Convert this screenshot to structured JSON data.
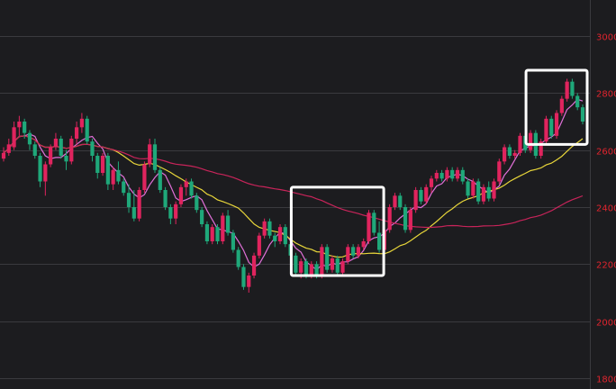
{
  "chart_data": {
    "type": "candlestick",
    "title": "",
    "xlabel": "",
    "ylabel": "",
    "ylim": [
      1800,
      3100
    ],
    "yticks": [
      "1800",
      "2000",
      "2200",
      "2400",
      "2600",
      "2800",
      "3000"
    ],
    "grid": true,
    "colors": {
      "background": "#1c1c1f",
      "grid": "#3a3a3e",
      "up": "#e0245e",
      "down": "#1fa87a",
      "ticks": "#e0242e",
      "highlight": "#ffffff"
    },
    "candles": [
      {
        "o": 2570,
        "h": 2610,
        "l": 2560,
        "c": 2590
      },
      {
        "o": 2590,
        "h": 2640,
        "l": 2580,
        "c": 2620
      },
      {
        "o": 2610,
        "h": 2700,
        "l": 2600,
        "c": 2680
      },
      {
        "o": 2680,
        "h": 2720,
        "l": 2650,
        "c": 2700
      },
      {
        "o": 2700,
        "h": 2710,
        "l": 2640,
        "c": 2660
      },
      {
        "o": 2660,
        "h": 2670,
        "l": 2600,
        "c": 2620
      },
      {
        "o": 2620,
        "h": 2630,
        "l": 2570,
        "c": 2580
      },
      {
        "o": 2580,
        "h": 2590,
        "l": 2470,
        "c": 2490
      },
      {
        "o": 2490,
        "h": 2560,
        "l": 2440,
        "c": 2550
      },
      {
        "o": 2550,
        "h": 2620,
        "l": 2540,
        "c": 2610
      },
      {
        "o": 2610,
        "h": 2660,
        "l": 2600,
        "c": 2640
      },
      {
        "o": 2640,
        "h": 2650,
        "l": 2570,
        "c": 2580
      },
      {
        "o": 2580,
        "h": 2600,
        "l": 2530,
        "c": 2560
      },
      {
        "o": 2560,
        "h": 2650,
        "l": 2550,
        "c": 2640
      },
      {
        "o": 2640,
        "h": 2700,
        "l": 2620,
        "c": 2680
      },
      {
        "o": 2680,
        "h": 2730,
        "l": 2660,
        "c": 2710
      },
      {
        "o": 2710,
        "h": 2720,
        "l": 2620,
        "c": 2630
      },
      {
        "o": 2630,
        "h": 2640,
        "l": 2560,
        "c": 2580
      },
      {
        "o": 2580,
        "h": 2590,
        "l": 2500,
        "c": 2520
      },
      {
        "o": 2520,
        "h": 2590,
        "l": 2510,
        "c": 2580
      },
      {
        "o": 2580,
        "h": 2590,
        "l": 2460,
        "c": 2480
      },
      {
        "o": 2480,
        "h": 2540,
        "l": 2460,
        "c": 2530
      },
      {
        "o": 2530,
        "h": 2560,
        "l": 2480,
        "c": 2490
      },
      {
        "o": 2490,
        "h": 2500,
        "l": 2440,
        "c": 2450
      },
      {
        "o": 2450,
        "h": 2480,
        "l": 2380,
        "c": 2400
      },
      {
        "o": 2400,
        "h": 2460,
        "l": 2350,
        "c": 2360
      },
      {
        "o": 2360,
        "h": 2470,
        "l": 2350,
        "c": 2460
      },
      {
        "o": 2460,
        "h": 2560,
        "l": 2450,
        "c": 2550
      },
      {
        "o": 2550,
        "h": 2640,
        "l": 2540,
        "c": 2620
      },
      {
        "o": 2620,
        "h": 2640,
        "l": 2520,
        "c": 2530
      },
      {
        "o": 2530,
        "h": 2540,
        "l": 2450,
        "c": 2460
      },
      {
        "o": 2460,
        "h": 2470,
        "l": 2390,
        "c": 2400
      },
      {
        "o": 2400,
        "h": 2410,
        "l": 2340,
        "c": 2360
      },
      {
        "o": 2360,
        "h": 2420,
        "l": 2340,
        "c": 2410
      },
      {
        "o": 2410,
        "h": 2480,
        "l": 2400,
        "c": 2470
      },
      {
        "o": 2470,
        "h": 2500,
        "l": 2440,
        "c": 2490
      },
      {
        "o": 2490,
        "h": 2500,
        "l": 2430,
        "c": 2440
      },
      {
        "o": 2440,
        "h": 2450,
        "l": 2380,
        "c": 2390
      },
      {
        "o": 2390,
        "h": 2400,
        "l": 2330,
        "c": 2340
      },
      {
        "o": 2340,
        "h": 2350,
        "l": 2270,
        "c": 2280
      },
      {
        "o": 2280,
        "h": 2340,
        "l": 2270,
        "c": 2330
      },
      {
        "o": 2330,
        "h": 2340,
        "l": 2270,
        "c": 2280
      },
      {
        "o": 2280,
        "h": 2380,
        "l": 2270,
        "c": 2370
      },
      {
        "o": 2370,
        "h": 2390,
        "l": 2300,
        "c": 2310
      },
      {
        "o": 2310,
        "h": 2320,
        "l": 2240,
        "c": 2250
      },
      {
        "o": 2250,
        "h": 2260,
        "l": 2180,
        "c": 2190
      },
      {
        "o": 2190,
        "h": 2200,
        "l": 2110,
        "c": 2120
      },
      {
        "o": 2120,
        "h": 2170,
        "l": 2100,
        "c": 2160
      },
      {
        "o": 2160,
        "h": 2240,
        "l": 2150,
        "c": 2230
      },
      {
        "o": 2230,
        "h": 2310,
        "l": 2220,
        "c": 2300
      },
      {
        "o": 2300,
        "h": 2360,
        "l": 2290,
        "c": 2350
      },
      {
        "o": 2350,
        "h": 2360,
        "l": 2290,
        "c": 2300
      },
      {
        "o": 2300,
        "h": 2310,
        "l": 2260,
        "c": 2280
      },
      {
        "o": 2280,
        "h": 2340,
        "l": 2270,
        "c": 2330
      },
      {
        "o": 2330,
        "h": 2340,
        "l": 2260,
        "c": 2270
      },
      {
        "o": 2270,
        "h": 2290,
        "l": 2220,
        "c": 2230
      },
      {
        "o": 2230,
        "h": 2240,
        "l": 2160,
        "c": 2170
      },
      {
        "o": 2170,
        "h": 2220,
        "l": 2150,
        "c": 2210
      },
      {
        "o": 2210,
        "h": 2220,
        "l": 2150,
        "c": 2160
      },
      {
        "o": 2160,
        "h": 2210,
        "l": 2150,
        "c": 2200
      },
      {
        "o": 2200,
        "h": 2210,
        "l": 2150,
        "c": 2160
      },
      {
        "o": 2160,
        "h": 2270,
        "l": 2150,
        "c": 2260
      },
      {
        "o": 2260,
        "h": 2270,
        "l": 2170,
        "c": 2180
      },
      {
        "o": 2180,
        "h": 2230,
        "l": 2170,
        "c": 2220
      },
      {
        "o": 2220,
        "h": 2230,
        "l": 2160,
        "c": 2170
      },
      {
        "o": 2170,
        "h": 2220,
        "l": 2160,
        "c": 2210
      },
      {
        "o": 2210,
        "h": 2270,
        "l": 2200,
        "c": 2260
      },
      {
        "o": 2260,
        "h": 2270,
        "l": 2220,
        "c": 2230
      },
      {
        "o": 2230,
        "h": 2270,
        "l": 2220,
        "c": 2260
      },
      {
        "o": 2260,
        "h": 2290,
        "l": 2250,
        "c": 2280
      },
      {
        "o": 2280,
        "h": 2390,
        "l": 2270,
        "c": 2380
      },
      {
        "o": 2380,
        "h": 2390,
        "l": 2300,
        "c": 2310
      },
      {
        "o": 2310,
        "h": 2350,
        "l": 2240,
        "c": 2250
      },
      {
        "o": 2250,
        "h": 2330,
        "l": 2240,
        "c": 2320
      },
      {
        "o": 2320,
        "h": 2410,
        "l": 2310,
        "c": 2400
      },
      {
        "o": 2400,
        "h": 2450,
        "l": 2390,
        "c": 2440
      },
      {
        "o": 2440,
        "h": 2450,
        "l": 2390,
        "c": 2400
      },
      {
        "o": 2400,
        "h": 2410,
        "l": 2310,
        "c": 2320
      },
      {
        "o": 2320,
        "h": 2400,
        "l": 2310,
        "c": 2390
      },
      {
        "o": 2390,
        "h": 2470,
        "l": 2380,
        "c": 2460
      },
      {
        "o": 2460,
        "h": 2470,
        "l": 2410,
        "c": 2420
      },
      {
        "o": 2420,
        "h": 2480,
        "l": 2410,
        "c": 2470
      },
      {
        "o": 2470,
        "h": 2510,
        "l": 2450,
        "c": 2500
      },
      {
        "o": 2500,
        "h": 2530,
        "l": 2490,
        "c": 2520
      },
      {
        "o": 2520,
        "h": 2530,
        "l": 2490,
        "c": 2500
      },
      {
        "o": 2500,
        "h": 2540,
        "l": 2490,
        "c": 2530
      },
      {
        "o": 2530,
        "h": 2540,
        "l": 2490,
        "c": 2500
      },
      {
        "o": 2500,
        "h": 2540,
        "l": 2490,
        "c": 2530
      },
      {
        "o": 2530,
        "h": 2540,
        "l": 2480,
        "c": 2490
      },
      {
        "o": 2490,
        "h": 2500,
        "l": 2430,
        "c": 2440
      },
      {
        "o": 2440,
        "h": 2500,
        "l": 2430,
        "c": 2490
      },
      {
        "o": 2490,
        "h": 2500,
        "l": 2410,
        "c": 2420
      },
      {
        "o": 2420,
        "h": 2480,
        "l": 2410,
        "c": 2470
      },
      {
        "o": 2470,
        "h": 2490,
        "l": 2420,
        "c": 2430
      },
      {
        "o": 2430,
        "h": 2500,
        "l": 2420,
        "c": 2490
      },
      {
        "o": 2490,
        "h": 2570,
        "l": 2480,
        "c": 2560
      },
      {
        "o": 2560,
        "h": 2620,
        "l": 2550,
        "c": 2610
      },
      {
        "o": 2610,
        "h": 2620,
        "l": 2570,
        "c": 2580
      },
      {
        "o": 2580,
        "h": 2600,
        "l": 2570,
        "c": 2590
      },
      {
        "o": 2590,
        "h": 2660,
        "l": 2580,
        "c": 2650
      },
      {
        "o": 2650,
        "h": 2660,
        "l": 2590,
        "c": 2600
      },
      {
        "o": 2600,
        "h": 2670,
        "l": 2590,
        "c": 2660
      },
      {
        "o": 2660,
        "h": 2670,
        "l": 2570,
        "c": 2580
      },
      {
        "o": 2580,
        "h": 2640,
        "l": 2570,
        "c": 2630
      },
      {
        "o": 2630,
        "h": 2720,
        "l": 2620,
        "c": 2710
      },
      {
        "o": 2710,
        "h": 2720,
        "l": 2640,
        "c": 2650
      },
      {
        "o": 2650,
        "h": 2740,
        "l": 2640,
        "c": 2730
      },
      {
        "o": 2730,
        "h": 2790,
        "l": 2720,
        "c": 2780
      },
      {
        "o": 2780,
        "h": 2850,
        "l": 2770,
        "c": 2840
      },
      {
        "o": 2840,
        "h": 2850,
        "l": 2780,
        "c": 2790
      },
      {
        "o": 2790,
        "h": 2800,
        "l": 2740,
        "c": 2750
      },
      {
        "o": 2750,
        "h": 2760,
        "l": 2690,
        "c": 2700
      }
    ],
    "moving_averages": [
      {
        "color": "#e070d8",
        "period": 5
      },
      {
        "color": "#e8d63a",
        "period": 20
      },
      {
        "color": "#c8245a",
        "period": 60
      }
    ],
    "highlight_boxes": [
      {
        "from": 56,
        "to": 72,
        "ymin": 2160,
        "ymax": 2470
      },
      {
        "from": 101,
        "to": 111,
        "ymin": 2620,
        "ymax": 2880
      }
    ]
  }
}
